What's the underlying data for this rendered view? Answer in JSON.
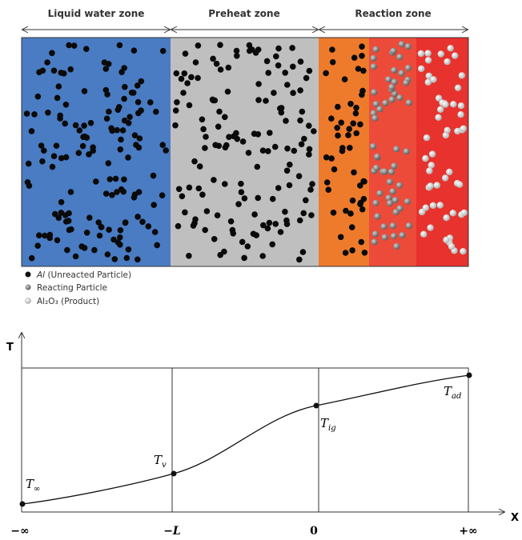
{
  "zones": [
    "Liquid water zone",
    "Preheat zone",
    "Reaction zone"
  ],
  "legend": [
    {
      "symbol": "Al",
      "text": "(Unreacted Particle)"
    },
    {
      "symbol": "",
      "text": "Reacting Particle"
    },
    {
      "symbol": "Al₂O₃",
      "text": "(Product)"
    }
  ],
  "plot": {
    "y_axis": "T",
    "x_axis": "X",
    "x_ticks": [
      "−∞",
      "−L",
      "0",
      "+∞"
    ],
    "points": [
      {
        "symbol": "T",
        "subscript": "∞"
      },
      {
        "symbol": "T",
        "subscript": "v"
      },
      {
        "symbol": "T",
        "subscript": "ig"
      },
      {
        "symbol": "T",
        "subscript": "ad"
      }
    ]
  }
}
